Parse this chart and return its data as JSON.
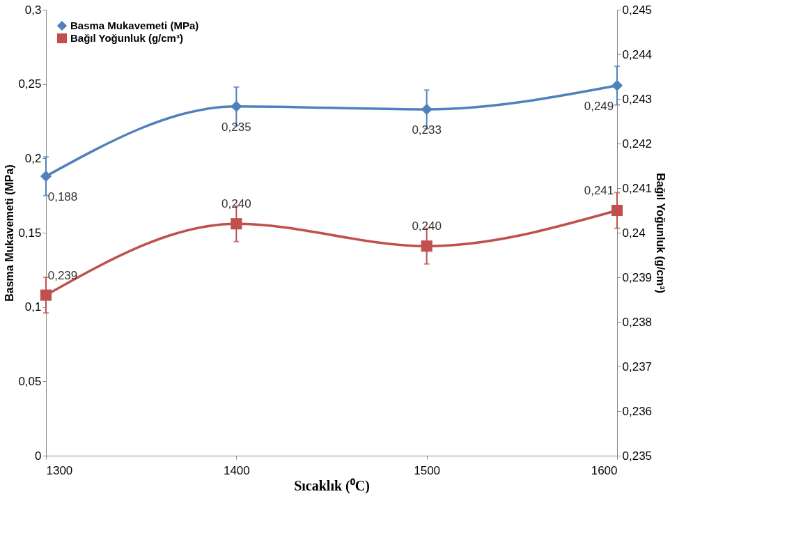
{
  "chart_data": {
    "type": "line",
    "xlabel": "Sıcaklık (⁰C)",
    "ylabel": "Basma Mukavemeti (MPa)",
    "y2label": "Bağıl Yoğunluk (g/cm³)",
    "x": [
      1300,
      1400,
      1500,
      1600
    ],
    "xlim": [
      1300,
      1600
    ],
    "xticks": [
      1300,
      1400,
      1500,
      1600
    ],
    "ylim": [
      0,
      0.3
    ],
    "yticks": [
      {
        "value": 0,
        "label": "0"
      },
      {
        "value": 0.05,
        "label": "0,05"
      },
      {
        "value": 0.1,
        "label": "0,1"
      },
      {
        "value": 0.15,
        "label": "0,15"
      },
      {
        "value": 0.2,
        "label": "0,2"
      },
      {
        "value": 0.25,
        "label": "0,25"
      },
      {
        "value": 0.3,
        "label": "0,3"
      }
    ],
    "y2lim": [
      0.235,
      0.245
    ],
    "y2ticks": [
      {
        "value": 0.235,
        "label": "0,235"
      },
      {
        "value": 0.236,
        "label": "0,236"
      },
      {
        "value": 0.237,
        "label": "0,237"
      },
      {
        "value": 0.238,
        "label": "0,238"
      },
      {
        "value": 0.239,
        "label": "0,239"
      },
      {
        "value": 0.24,
        "label": "0,24"
      },
      {
        "value": 0.241,
        "label": "0,241"
      },
      {
        "value": 0.242,
        "label": "0,242"
      },
      {
        "value": 0.243,
        "label": "0,243"
      },
      {
        "value": 0.244,
        "label": "0,244"
      },
      {
        "value": 0.245,
        "label": "0,245"
      }
    ],
    "legend": "top left",
    "line_style": "solid",
    "series": [
      {
        "name": "Basma Mukavemeti (MPa)",
        "color": "#4f81bd",
        "marker": "diamond",
        "values": [
          0.188,
          0.235,
          0.233,
          0.249
        ],
        "errors": [
          0.013,
          0.013,
          0.013,
          0.013
        ],
        "value_labels": [
          "0,188",
          "0,235",
          "0,233",
          "0,249"
        ]
      },
      {
        "name": "Bağıl Yoğunluk (g/cm³)",
        "color": "#c0504d",
        "marker": "square",
        "axis": "y2",
        "values": [
          0.2386,
          0.2402,
          0.2397,
          0.2405
        ],
        "errors": [
          0.0004,
          0.0004,
          0.0004,
          0.0004
        ],
        "value_labels": [
          "0,239",
          "0,240",
          "0,240",
          "0,241"
        ]
      }
    ]
  }
}
